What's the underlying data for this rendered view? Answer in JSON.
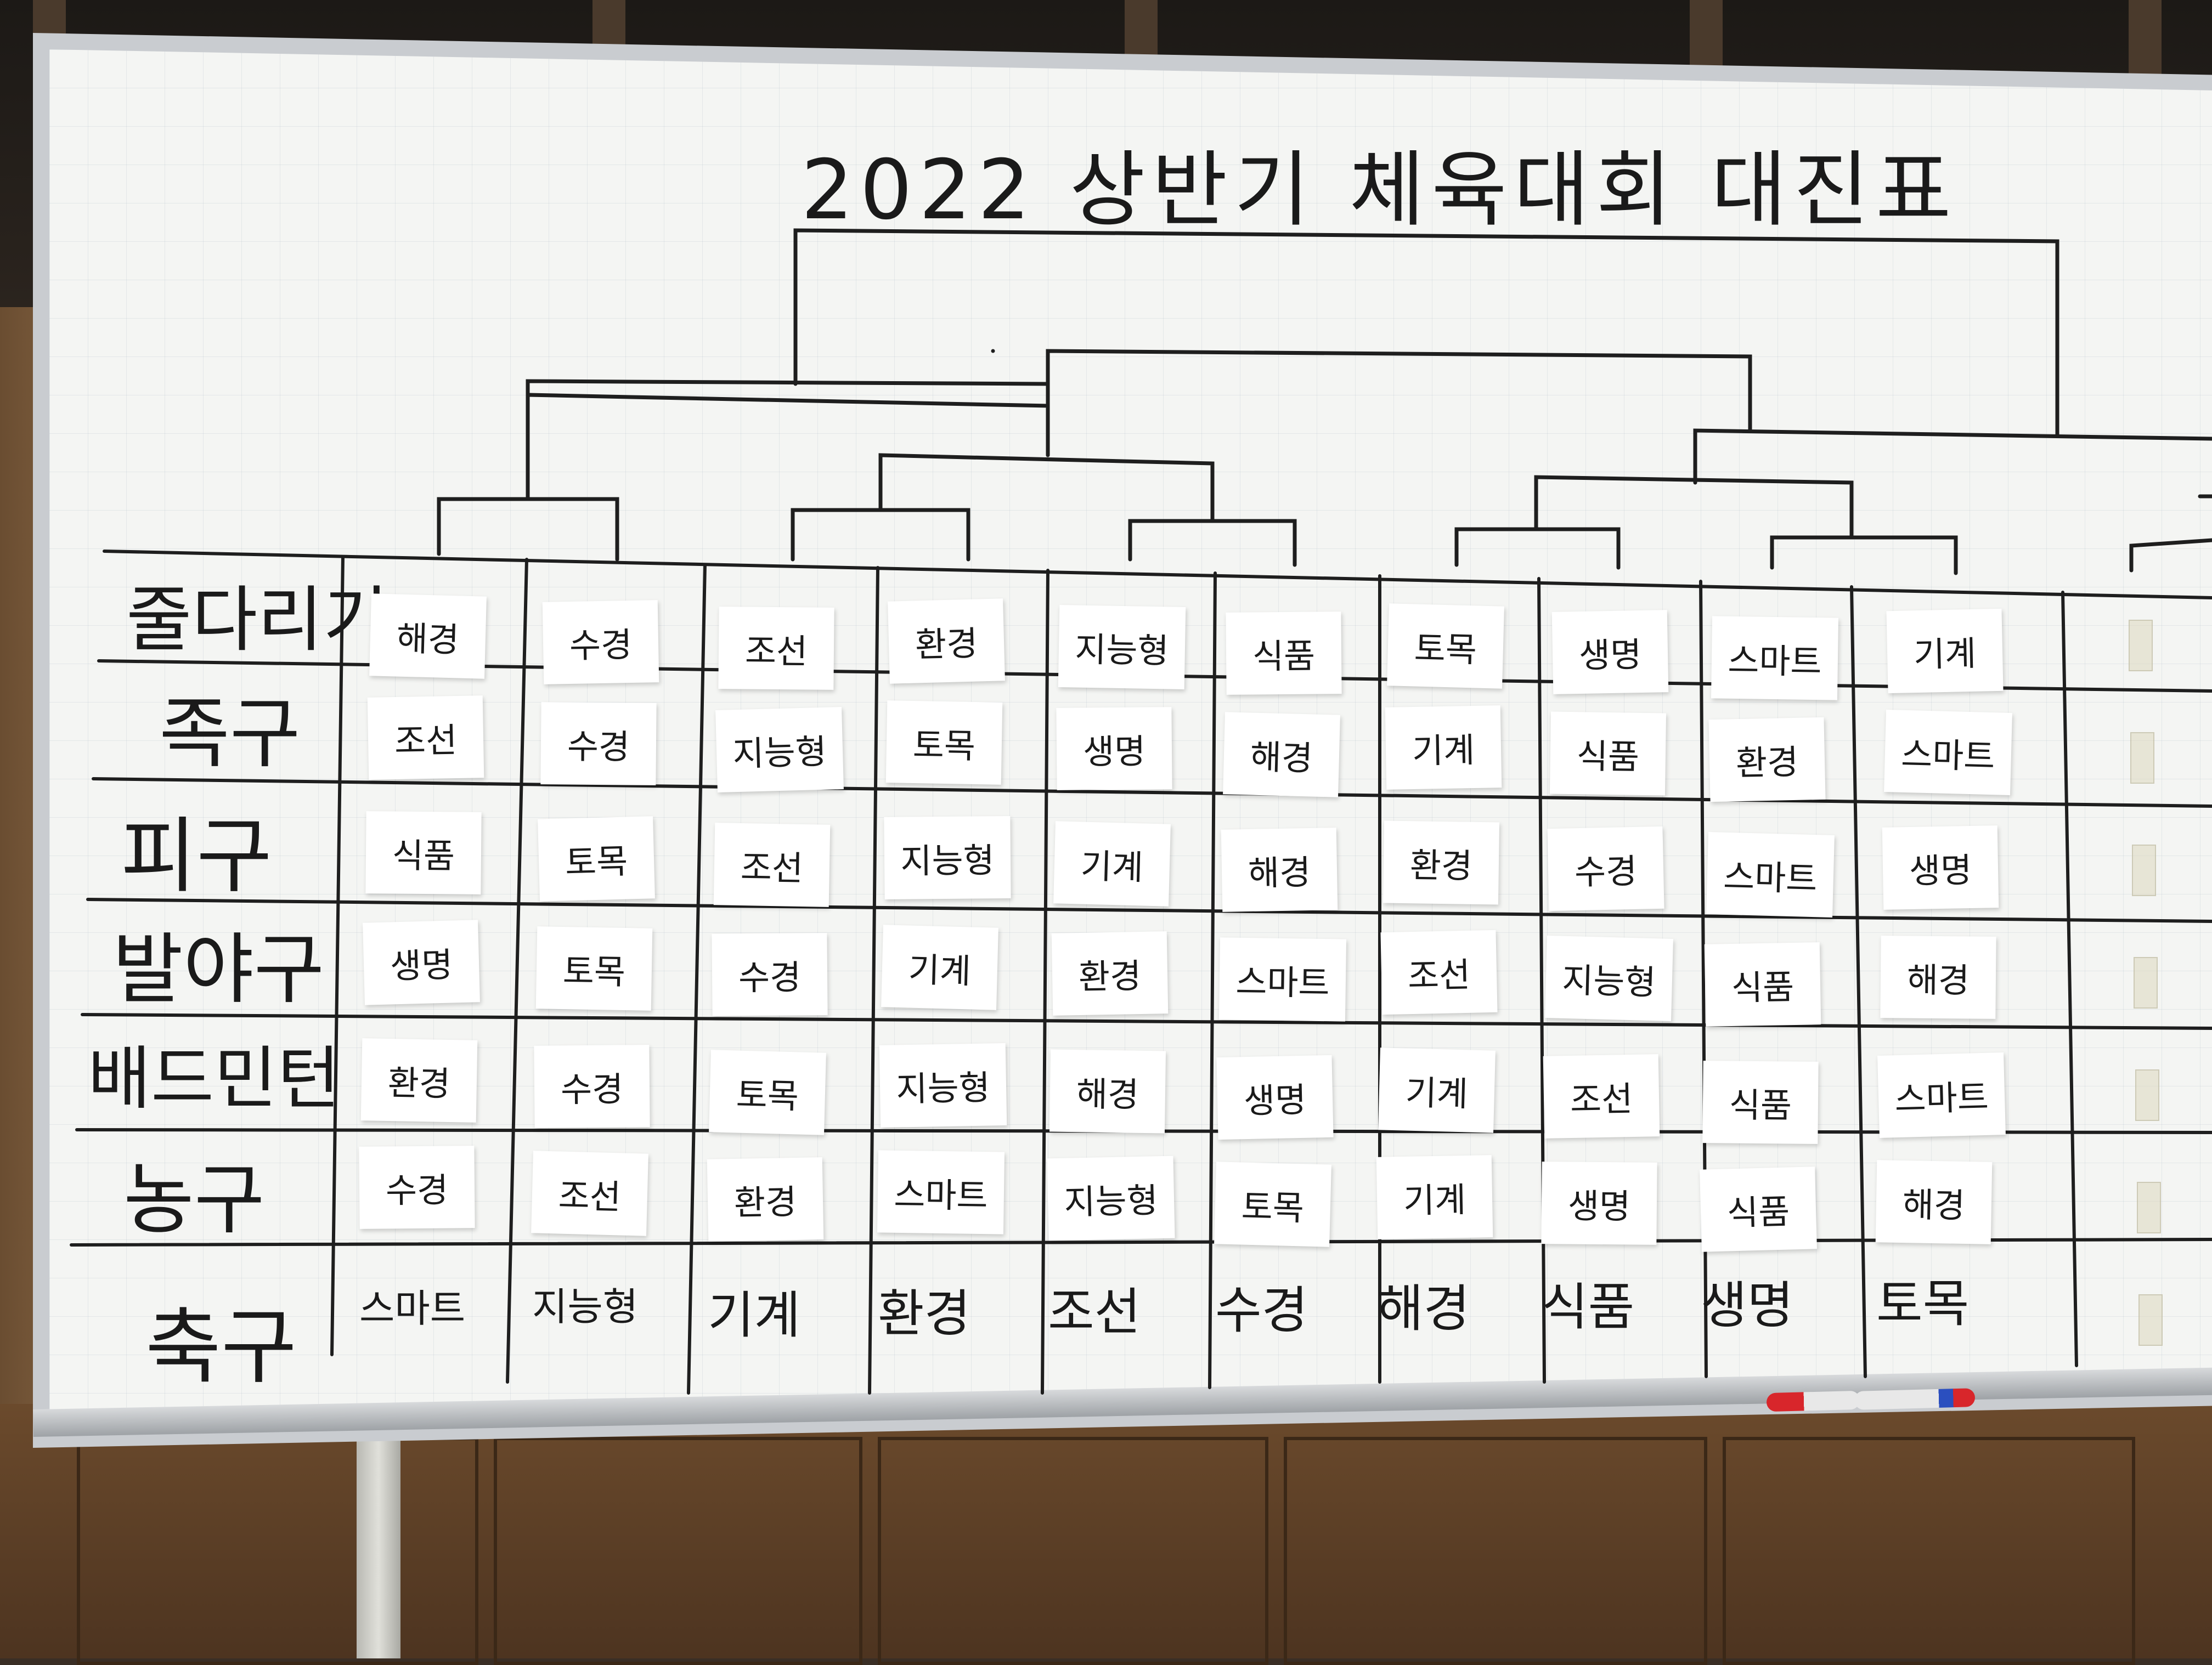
{
  "title": "2022 상반기 체육대회 대진표",
  "sports": [
    {
      "label": "줄다리기",
      "teams": [
        "해경",
        "수경",
        "조선",
        "환경",
        "지능형",
        "식품",
        "토목",
        "생명",
        "스마트",
        "기계"
      ]
    },
    {
      "label": "족구",
      "teams": [
        "조선",
        "수경",
        "지능형",
        "토목",
        "생명",
        "해경",
        "기계",
        "식품",
        "환경",
        "스마트"
      ]
    },
    {
      "label": "피구",
      "teams": [
        "식품",
        "토목",
        "조선",
        "지능형",
        "기계",
        "해경",
        "환경",
        "수경",
        "스마트",
        "생명"
      ]
    },
    {
      "label": "발야구",
      "teams": [
        "생명",
        "토목",
        "수경",
        "기계",
        "환경",
        "스마트",
        "조선",
        "지능형",
        "식품",
        "해경"
      ]
    },
    {
      "label": "배드민턴",
      "teams": [
        "환경",
        "수경",
        "토목",
        "지능형",
        "해경",
        "생명",
        "기계",
        "조선",
        "식품",
        "스마트"
      ]
    },
    {
      "label": "농구",
      "teams": [
        "수경",
        "조선",
        "환경",
        "스마트",
        "지능형",
        "토목",
        "기계",
        "생명",
        "식품",
        "해경"
      ]
    },
    {
      "label": "축구",
      "teams": [
        "스마트",
        "지능형",
        "기계",
        "환경",
        "조선",
        "수경",
        "해경",
        "식품",
        "생명",
        "토목"
      ]
    }
  ],
  "colors": {
    "board": "#f4f5f3",
    "ink": "#1a1a1a",
    "marker_red": "#d8262b",
    "marker_blue": "#2b4fbf"
  }
}
